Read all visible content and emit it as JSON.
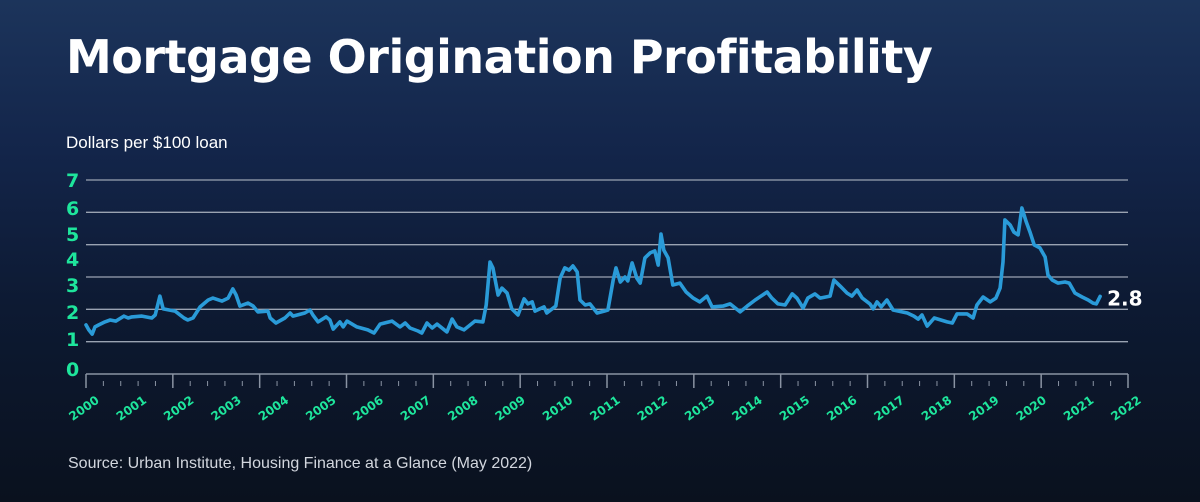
{
  "colors": {
    "line": "#2a9bd8",
    "tick_text": "#1ee59c",
    "grid": "#9aa3b2",
    "axis": "#8a93a3"
  },
  "chart_data": {
    "type": "line",
    "title": "Mortgage Origination Profitability",
    "ylabel": "Dollars per $100 loan",
    "xlabel": "",
    "ylim": [
      0,
      7
    ],
    "xlim": [
      2000,
      2022
    ],
    "y_ticks": [
      "7",
      "6",
      "5",
      "4",
      "3",
      "2",
      "1",
      "0"
    ],
    "x_ticks": [
      "2000",
      "2001",
      "2002",
      "2003",
      "2004",
      "2005",
      "2006",
      "2007",
      "2008",
      "2009",
      "2010",
      "2011",
      "2012",
      "2013",
      "2014",
      "2015",
      "2016",
      "2017",
      "2018",
      "2019",
      "2020",
      "2021",
      "2022"
    ],
    "grid": true,
    "end_label": "2.8",
    "source": "Source: Urban Institute, Housing Finance at a Glance (May 2022)",
    "series": [
      {
        "name": "Mortgage origination profitability",
        "x": [
          2000.0,
          2000.06,
          2000.13,
          2000.19,
          2000.27,
          2000.4,
          2000.51,
          2000.63,
          2000.8,
          2000.89,
          2000.97,
          2001.18,
          2001.39,
          2001.46,
          2001.56,
          2001.63,
          2001.88,
          2002.07,
          2002.15,
          2002.26,
          2002.41,
          2002.58,
          2002.68,
          2002.87,
          2003.0,
          2003.1,
          2003.17,
          2003.25,
          2003.42,
          2003.53,
          2003.63,
          2003.84,
          2003.89,
          2004.01,
          2004.2,
          2004.31,
          2004.37,
          2004.62,
          2004.73,
          2004.79,
          2004.9,
          2005.07,
          2005.15,
          2005.22,
          2005.36,
          2005.43,
          2005.51,
          2005.72,
          2005.95,
          2006.08,
          2006.21,
          2006.46,
          2006.63,
          2006.74,
          2006.84,
          2007.01,
          2007.09,
          2007.2,
          2007.31,
          2007.41,
          2007.62,
          2007.73,
          2007.83,
          2007.98,
          2008.21,
          2008.38,
          2008.45,
          2008.53,
          2008.59,
          2008.7,
          2008.78,
          2008.89,
          2008.99,
          2009.12,
          2009.25,
          2009.33,
          2009.42,
          2009.48,
          2009.67,
          2009.73,
          2009.92,
          2010.01,
          2010.11,
          2010.2,
          2010.28,
          2010.37,
          2010.43,
          2010.54,
          2010.64,
          2010.79,
          2010.94,
          2011.02,
          2011.13,
          2011.19,
          2011.28,
          2011.38,
          2011.44,
          2011.53,
          2011.63,
          2011.7,
          2011.8,
          2011.91,
          2012.01,
          2012.08,
          2012.14,
          2012.2,
          2012.29,
          2012.39,
          2012.54,
          2012.67,
          2012.82,
          2012.96,
          2013.11,
          2013.22,
          2013.45,
          2013.6,
          2013.81,
          2013.96,
          2014.13,
          2014.38,
          2014.48,
          2014.61,
          2014.76,
          2014.91,
          2015.01,
          2015.14,
          2015.24,
          2015.39,
          2015.5,
          2015.71,
          2015.79,
          2015.92,
          2016.07,
          2016.17,
          2016.28,
          2016.39,
          2016.55,
          2016.62,
          2016.7,
          2016.79,
          2016.91,
          2017.04,
          2017.34,
          2017.48,
          2017.57,
          2017.65,
          2017.76,
          2017.91,
          2018.18,
          2018.29,
          2018.39,
          2018.6,
          2018.73,
          2018.81,
          2018.94,
          2019.09,
          2019.21,
          2019.3,
          2019.36,
          2019.4,
          2019.51,
          2019.59,
          2019.68,
          2019.76,
          2019.85,
          2019.93,
          2020.02,
          2020.14,
          2020.25,
          2020.31,
          2020.4,
          2020.52,
          2020.67,
          2020.76,
          2020.88,
          2021.03,
          2021.16,
          2021.26,
          2021.33,
          2021.41
        ],
        "y": [
          1.77,
          1.59,
          1.44,
          1.7,
          1.77,
          1.88,
          1.95,
          1.91,
          2.09,
          2.02,
          2.06,
          2.09,
          2.02,
          2.13,
          2.81,
          2.35,
          2.27,
          2.02,
          1.95,
          2.02,
          2.42,
          2.67,
          2.74,
          2.63,
          2.74,
          3.07,
          2.85,
          2.45,
          2.56,
          2.45,
          2.24,
          2.27,
          2.02,
          1.84,
          2.02,
          2.2,
          2.09,
          2.2,
          2.31,
          2.13,
          1.88,
          2.06,
          1.95,
          1.62,
          1.88,
          1.7,
          1.91,
          1.7,
          1.59,
          1.48,
          1.8,
          1.91,
          1.7,
          1.84,
          1.66,
          1.55,
          1.48,
          1.84,
          1.66,
          1.8,
          1.52,
          1.98,
          1.7,
          1.59,
          1.91,
          1.88,
          2.49,
          4.04,
          3.83,
          2.85,
          3.1,
          2.92,
          2.35,
          2.13,
          2.71,
          2.53,
          2.6,
          2.27,
          2.42,
          2.2,
          2.45,
          3.46,
          3.83,
          3.75,
          3.9,
          3.68,
          2.67,
          2.49,
          2.53,
          2.2,
          2.27,
          2.31,
          3.39,
          3.83,
          3.32,
          3.5,
          3.36,
          4.01,
          3.46,
          3.28,
          4.19,
          4.37,
          4.44,
          3.93,
          5.05,
          4.47,
          4.19,
          3.21,
          3.28,
          2.96,
          2.74,
          2.6,
          2.81,
          2.42,
          2.45,
          2.53,
          2.24,
          2.45,
          2.67,
          2.96,
          2.74,
          2.53,
          2.49,
          2.89,
          2.74,
          2.38,
          2.74,
          2.89,
          2.74,
          2.81,
          3.39,
          3.18,
          2.92,
          2.81,
          3.03,
          2.74,
          2.53,
          2.35,
          2.6,
          2.42,
          2.67,
          2.31,
          2.2,
          2.09,
          1.98,
          2.13,
          1.73,
          2.02,
          1.88,
          1.84,
          2.17,
          2.17,
          2.02,
          2.49,
          2.78,
          2.6,
          2.74,
          3.1,
          4.04,
          5.56,
          5.38,
          5.12,
          5.02,
          5.99,
          5.49,
          5.12,
          4.66,
          4.55,
          4.22,
          3.57,
          3.39,
          3.28,
          3.32,
          3.28,
          2.92,
          2.78,
          2.67,
          2.56,
          2.53,
          2.8
        ]
      }
    ]
  }
}
